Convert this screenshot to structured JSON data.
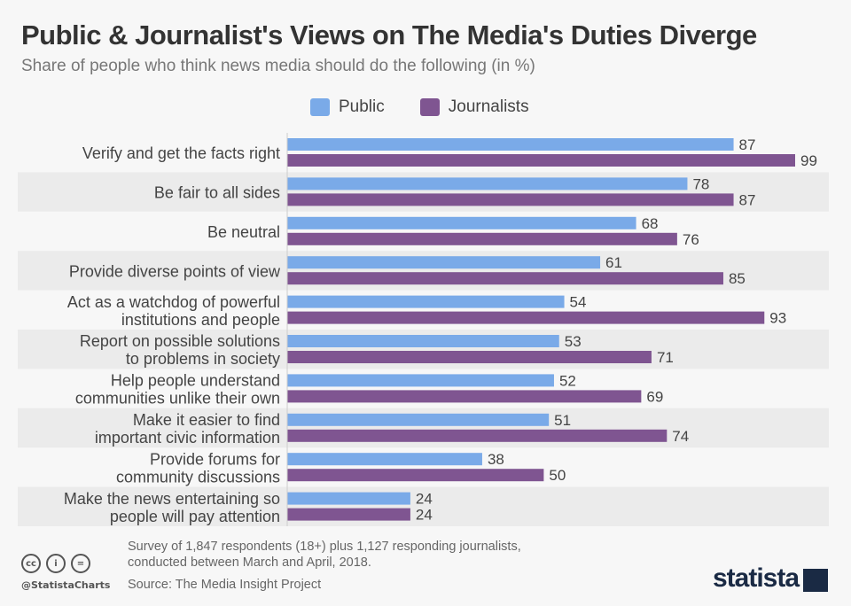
{
  "title": "Public & Journalist's Views on The Media's Duties Diverge",
  "subtitle": "Share of people who think news media should do the following (in %)",
  "chart_data": {
    "type": "bar",
    "orientation": "horizontal",
    "categories": [
      [
        "Verify and get the facts right"
      ],
      [
        "Be fair to all sides"
      ],
      [
        "Be neutral"
      ],
      [
        "Provide diverse points of view"
      ],
      [
        "Act as a watchdog of powerful",
        "institutions and people"
      ],
      [
        "Report on possible solutions",
        "to problems in society"
      ],
      [
        "Help people understand",
        "communities unlike their own"
      ],
      [
        "Make it easier to find",
        "important civic information"
      ],
      [
        "Provide forums for",
        "community discussions"
      ],
      [
        "Make the news entertaining so",
        "people will pay attention"
      ]
    ],
    "series": [
      {
        "name": "Public",
        "color": "#7aaae8",
        "values": [
          87,
          78,
          68,
          61,
          54,
          53,
          52,
          51,
          38,
          24
        ]
      },
      {
        "name": "Journalists",
        "color": "#7f5591",
        "values": [
          99,
          87,
          76,
          85,
          93,
          71,
          69,
          74,
          50,
          24
        ]
      }
    ],
    "xlim": [
      0,
      100
    ],
    "legend": "top-center",
    "grid": false,
    "data_labels": true
  },
  "footer": {
    "note1": "Survey of 1,847 respondents (18+) plus 1,127 responding journalists,",
    "note2": "conducted between March and April, 2018.",
    "source": "Source: The Media Insight Project",
    "handle": "@StatistaCharts",
    "brand": "statista"
  }
}
